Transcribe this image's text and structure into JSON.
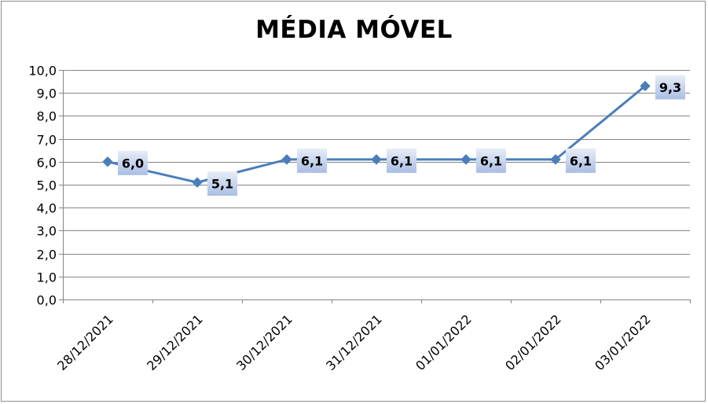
{
  "chart_data": {
    "type": "line",
    "title": "MÉDIA MÓVEL",
    "categories": [
      "28/12/2021",
      "29/12/2021",
      "30/12/2021",
      "31/12/2021",
      "01/01/2022",
      "02/01/2022",
      "03/01/2022"
    ],
    "series": [
      {
        "values": [
          6.0,
          5.1,
          6.1,
          6.1,
          6.1,
          6.1,
          9.3
        ]
      }
    ],
    "data_labels": [
      "6,0",
      "5,1",
      "6,1",
      "6,1",
      "6,1",
      "6,1",
      "9,3"
    ],
    "y_ticks": [
      "0,0",
      "1,0",
      "2,0",
      "3,0",
      "4,0",
      "5,0",
      "6,0",
      "7,0",
      "8,0",
      "9,0",
      "10,0"
    ],
    "ylim": [
      0,
      10
    ],
    "grid": true,
    "legend": "none",
    "marker": "diamond",
    "colors": {
      "line": "#4a7ebb",
      "label_fill_light": "#e8eef8",
      "label_fill_dark": "#a9bde3",
      "grid": "#868686"
    }
  }
}
